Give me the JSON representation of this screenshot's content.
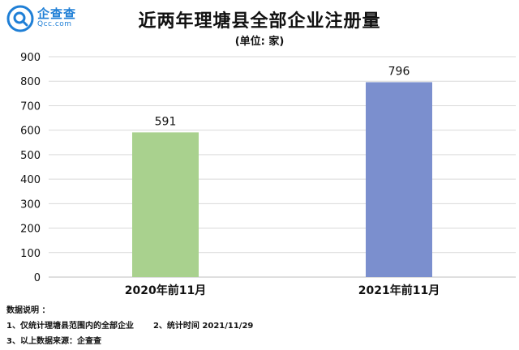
{
  "logo": {
    "name_cn": "企查查",
    "name_en": "Qcc.com"
  },
  "chart_data": {
    "type": "bar",
    "title": "近两年理塘县全部企业注册量",
    "subtitle": "(单位: 家)",
    "categories": [
      "2020年前11月",
      "2021年前11月"
    ],
    "values": [
      591,
      796
    ],
    "data_labels": [
      "591",
      "796"
    ],
    "ylim": [
      0,
      900
    ],
    "yticks": [
      0,
      100,
      200,
      300,
      400,
      500,
      600,
      700,
      800,
      900
    ],
    "grid": true,
    "colors": [
      "#a9d18e",
      "#7b8fce"
    ]
  },
  "notes": {
    "heading": "数据说明 ：",
    "item1": "1、仅统计理塘县范围内的全部企业",
    "item2": "2、统计时间 2021/11/29",
    "item3": "3、以上数据来源：企查查"
  }
}
